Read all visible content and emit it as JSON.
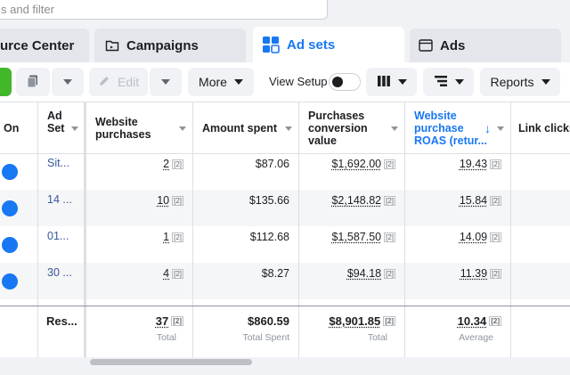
{
  "search": {
    "placeholder": "s and filter"
  },
  "tabs": [
    {
      "label": "urce Center"
    },
    {
      "label": "Campaigns"
    },
    {
      "label": "Ad sets",
      "active": true
    },
    {
      "label": "Ads"
    }
  ],
  "toolbar": {
    "edit_label": "Edit",
    "more_label": "More",
    "view_setup_label": "View Setup",
    "reports_label": "Reports"
  },
  "table": {
    "headers": {
      "on": "On",
      "adset": [
        "Ad",
        "Set"
      ],
      "website_purchases": [
        "Website",
        "purchases"
      ],
      "amount_spent": "Amount spent",
      "purchases_conversion_value": [
        "Purchases",
        "conversion",
        "value"
      ],
      "website_purchase_roas": [
        "Website",
        "purchase",
        "ROAS (retur..."
      ],
      "link_clicks": "Link clicks"
    },
    "ref_marker": "[2]",
    "rows": [
      {
        "adset": "Sit...",
        "purchases": "2",
        "spent": "$87.06",
        "conv_value": "$1,692.00",
        "roas": "19.43"
      },
      {
        "adset": "14 ...",
        "purchases": "10",
        "spent": "$135.66",
        "conv_value": "$2,148.82",
        "roas": "15.84"
      },
      {
        "adset": "01...",
        "purchases": "1",
        "spent": "$112.68",
        "conv_value": "$1,587.50",
        "roas": "14.09"
      },
      {
        "adset": "30 ...",
        "purchases": "4",
        "spent": "$8.27",
        "conv_value": "$94.18",
        "roas": "11.39"
      }
    ],
    "footer": {
      "adset": "Res...",
      "purchases": "37",
      "purchases_sub": "Total",
      "spent": "$860.59",
      "spent_sub": "Total Spent",
      "conv_value": "$8,901.85",
      "conv_value_sub": "Total",
      "roas": "10.34",
      "roas_sub": "Average"
    }
  },
  "colors": {
    "accent": "#1877f2",
    "link": "#385898",
    "create_green": "#42b72a"
  }
}
